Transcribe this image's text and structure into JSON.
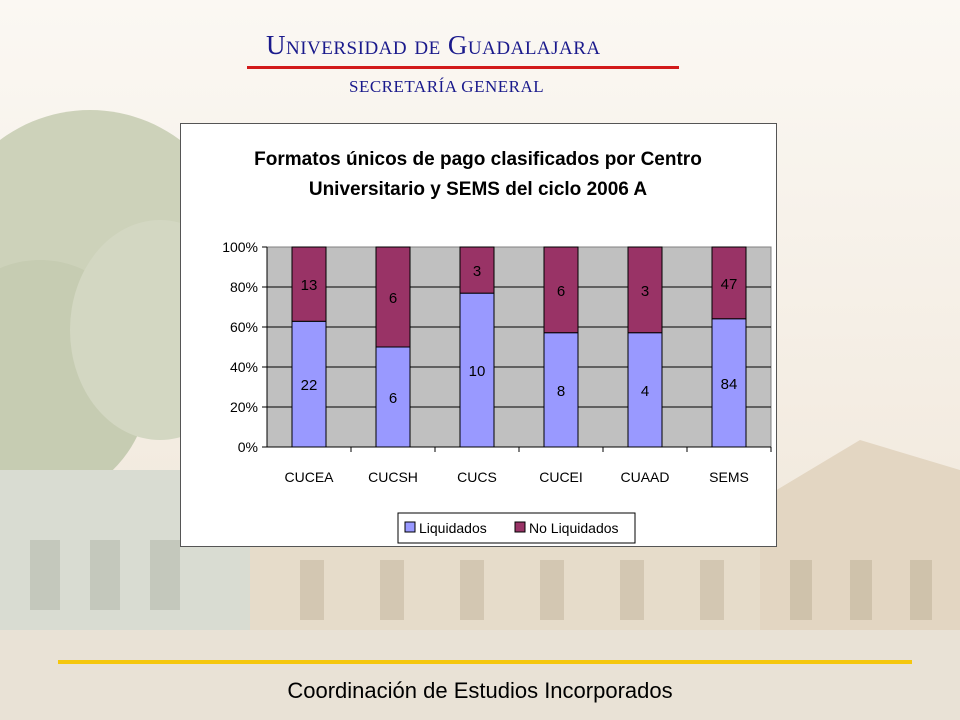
{
  "header": {
    "title": "Universidad de Guadalajara",
    "subtitle": "SECRETARÍA GENERAL"
  },
  "footer": {
    "text": "Coordinación de Estudios Incorporados"
  },
  "colors": {
    "liquidados": "#9999ff",
    "no_liquidados": "#993366",
    "plot_bg": "#c0c0c0",
    "header_blue": "#1a1a8c",
    "header_rule": "#d21a1a",
    "footer_rule": "#f5c70e"
  },
  "chart_data": {
    "type": "bar",
    "stacked": "percent",
    "title_lines": [
      "Formatos únicos de pago clasificados por Centro",
      "Universitario y SEMS del ciclo 2006 A"
    ],
    "categories": [
      "CUCEA",
      "CUCSH",
      "CUCS",
      "CUCEI",
      "CUAAD",
      "SEMS"
    ],
    "series": [
      {
        "name": "Liquidados",
        "values": [
          22,
          6,
          10,
          8,
          4,
          84
        ]
      },
      {
        "name": "No Liquidados",
        "values": [
          13,
          6,
          3,
          6,
          3,
          47
        ]
      }
    ],
    "yticks": [
      "0%",
      "20%",
      "40%",
      "60%",
      "80%",
      "100%"
    ],
    "ylim": [
      0,
      100
    ],
    "grid": true,
    "legend_position": "bottom"
  }
}
